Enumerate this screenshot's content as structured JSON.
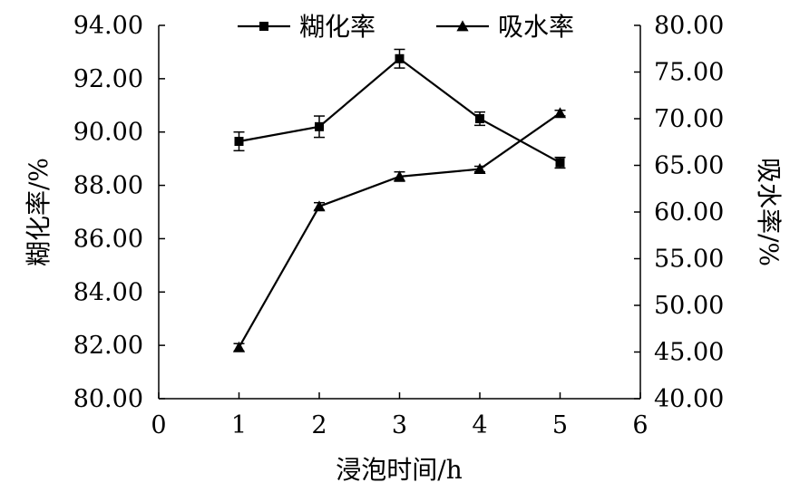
{
  "chart_data": {
    "type": "line",
    "title": "",
    "xlabel": "浸泡时间/h",
    "ylabel": "糊化率/%",
    "y2label": "吸水率/%",
    "xlim": [
      0,
      6
    ],
    "ylim": [
      80,
      94
    ],
    "y2lim": [
      40,
      80
    ],
    "x_ticks": [
      "0",
      "1",
      "2",
      "3",
      "4",
      "5",
      "6"
    ],
    "y_ticks": [
      "80.00",
      "82.00",
      "84.00",
      "86.00",
      "88.00",
      "90.00",
      "92.00",
      "94.00"
    ],
    "y2_ticks": [
      "40.00",
      "45.00",
      "50.00",
      "55.00",
      "60.00",
      "65.00",
      "70.00",
      "75.00",
      "80.00"
    ],
    "legend_position": "top",
    "grid": false,
    "x": [
      1,
      2,
      3,
      4,
      5
    ],
    "series": [
      {
        "name": "糊化率",
        "axis": "left",
        "marker": "square",
        "color": "#000000",
        "values": [
          89.65,
          90.2,
          92.75,
          90.5,
          88.85
        ],
        "errors": [
          0.35,
          0.4,
          0.35,
          0.25,
          0.2
        ]
      },
      {
        "name": "吸水率",
        "axis": "right",
        "marker": "triangle",
        "color": "#000000",
        "values": [
          45.5,
          60.6,
          63.8,
          64.6,
          70.6
        ],
        "errors": [
          0.4,
          0.4,
          0.5,
          0.3,
          0.3
        ]
      }
    ]
  }
}
